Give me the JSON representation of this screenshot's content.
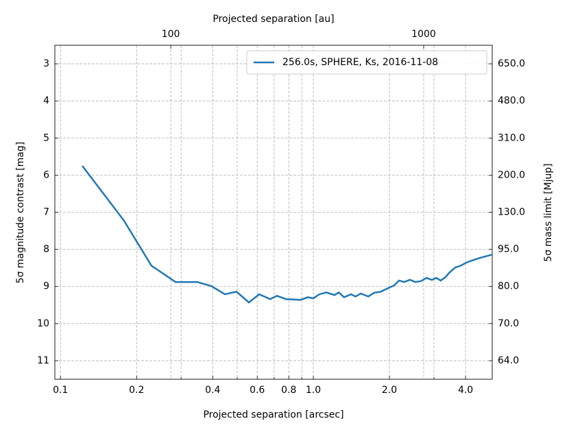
{
  "chart_data": {
    "type": "line",
    "xlabel": "Projected separation [arcsec]",
    "ylabel": "5σ magnitude contrast [mag]",
    "x2label": "Projected separation [au]",
    "y2label": "5σ mass limit [Mjup]",
    "xscale": "log",
    "grid": true,
    "legend": "upper right",
    "xlim": [
      0.095,
      5.1
    ],
    "xticks": [
      0.1,
      0.2,
      0.4,
      0.6,
      0.8,
      {
        "value": 1,
        "label": "1.0"
      },
      {
        "value": 2,
        "label": "2.0"
      },
      {
        "value": 4,
        "label": "4.0"
      }
    ],
    "xminor": [
      0.3,
      0.5,
      0.7,
      0.9,
      3
    ],
    "x2lim": [
      34.8,
      1867
    ],
    "x2ticks": [
      100,
      1000
    ],
    "ylim": [
      11.5,
      2.5
    ],
    "yticks": [
      3,
      4,
      5,
      6,
      7,
      8,
      9,
      10,
      11
    ],
    "y2ticks": [
      {
        "value": 650,
        "label": "650.0"
      },
      {
        "value": 480,
        "label": "480.0"
      },
      {
        "value": 310,
        "label": "310.0"
      },
      {
        "value": 200,
        "label": "200.0"
      },
      {
        "value": 130,
        "label": "130.0"
      },
      {
        "value": 95,
        "label": "95.0"
      },
      {
        "value": 80,
        "label": "80.0"
      },
      {
        "value": 70,
        "label": "70.0"
      },
      {
        "value": 64,
        "label": "64.0"
      }
    ],
    "series": [
      {
        "name": "256.0s, SPHERE, Ks, 2016-11-08",
        "color": "#1f77b4",
        "x": [
          0.122,
          0.178,
          0.229,
          0.285,
          0.348,
          0.395,
          0.447,
          0.497,
          0.556,
          0.611,
          0.675,
          0.718,
          0.779,
          0.889,
          0.951,
          1.0,
          1.057,
          1.126,
          1.213,
          1.26,
          1.324,
          1.41,
          1.47,
          1.54,
          1.65,
          1.74,
          1.85,
          1.97,
          2.09,
          2.18,
          2.29,
          2.41,
          2.53,
          2.66,
          2.8,
          2.94,
          3.07,
          3.19,
          3.33,
          3.46,
          3.64,
          3.83,
          4.02,
          4.28,
          4.56,
          4.85,
          5.1
        ],
        "values": [
          5.75,
          7.22,
          8.44,
          8.88,
          8.88,
          8.99,
          9.21,
          9.14,
          9.43,
          9.21,
          9.34,
          9.25,
          9.34,
          9.36,
          9.29,
          9.32,
          9.21,
          9.16,
          9.23,
          9.16,
          9.29,
          9.21,
          9.27,
          9.19,
          9.27,
          9.17,
          9.14,
          9.05,
          8.97,
          8.84,
          8.88,
          8.82,
          8.88,
          8.86,
          8.77,
          8.82,
          8.77,
          8.84,
          8.75,
          8.62,
          8.49,
          8.44,
          8.36,
          8.29,
          8.23,
          8.18,
          8.14
        ]
      }
    ]
  }
}
